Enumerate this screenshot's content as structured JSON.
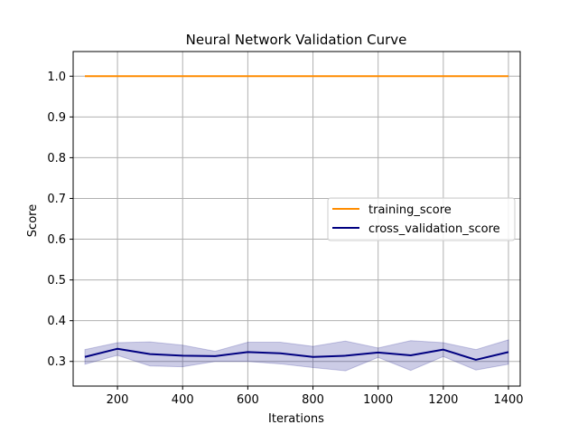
{
  "chart_data": {
    "type": "line",
    "title": "Neural Network Validation Curve",
    "xlabel": "Iterations",
    "ylabel": "Score",
    "xlim": [
      64,
      1436
    ],
    "ylim": [
      0.2395,
      1.0605
    ],
    "xticks": [
      200,
      400,
      600,
      800,
      1000,
      1200,
      1400
    ],
    "yticks": [
      0.3,
      0.4,
      0.5,
      0.6,
      0.7,
      0.8,
      0.9,
      1.0
    ],
    "grid": true,
    "legend_position": "center-right",
    "x": [
      100,
      200,
      300,
      400,
      500,
      600,
      700,
      800,
      900,
      1000,
      1100,
      1200,
      1300,
      1400
    ],
    "series": [
      {
        "name": "training_score",
        "color": "#ff8c00",
        "values": [
          1.0,
          1.0,
          1.0,
          1.0,
          1.0,
          1.0,
          1.0,
          1.0,
          1.0,
          1.0,
          1.0,
          1.0,
          1.0,
          1.0
        ],
        "band_lower": [
          1.0,
          1.0,
          1.0,
          1.0,
          1.0,
          1.0,
          1.0,
          1.0,
          1.0,
          1.0,
          1.0,
          1.0,
          1.0,
          1.0
        ],
        "band_upper": [
          1.0,
          1.0,
          1.0,
          1.0,
          1.0,
          1.0,
          1.0,
          1.0,
          1.0,
          1.0,
          1.0,
          1.0,
          1.0,
          1.0
        ]
      },
      {
        "name": "cross_validation_score",
        "color": "#000080",
        "values": [
          0.311,
          0.331,
          0.318,
          0.314,
          0.313,
          0.323,
          0.32,
          0.311,
          0.314,
          0.322,
          0.315,
          0.329,
          0.304,
          0.323
        ],
        "band_lower": [
          0.293,
          0.315,
          0.289,
          0.287,
          0.3,
          0.3,
          0.294,
          0.285,
          0.277,
          0.31,
          0.278,
          0.312,
          0.279,
          0.293
        ],
        "band_upper": [
          0.329,
          0.346,
          0.348,
          0.34,
          0.325,
          0.347,
          0.347,
          0.337,
          0.35,
          0.333,
          0.351,
          0.346,
          0.329,
          0.353
        ],
        "band_color": "#000080"
      }
    ]
  }
}
